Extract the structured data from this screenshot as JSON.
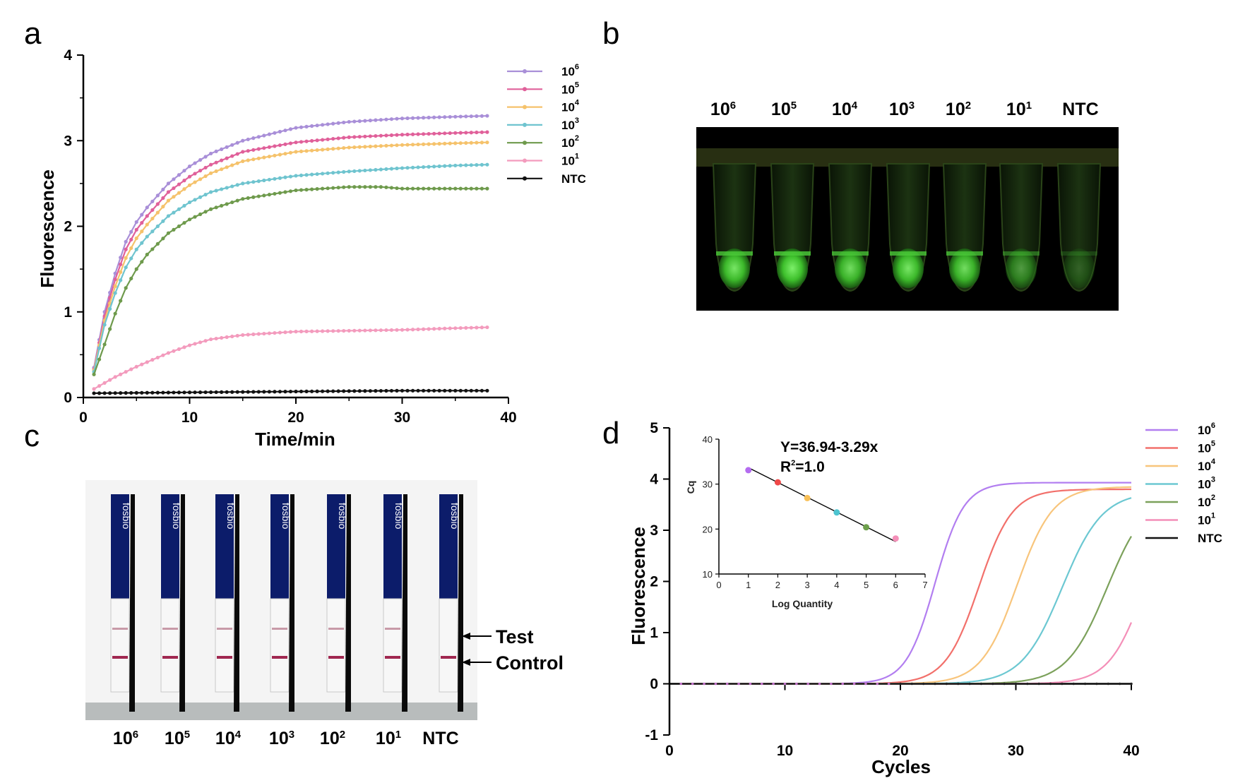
{
  "panels": {
    "a": "a",
    "b": "b",
    "c": "c",
    "d": "d"
  },
  "chart_data": [
    {
      "id": "a",
      "type": "line",
      "title": "",
      "xlabel": "Time/min",
      "ylabel": "Fluorescence",
      "xlim": [
        0,
        40
      ],
      "ylim": [
        0,
        4
      ],
      "xticks": [
        0,
        10,
        20,
        30,
        40
      ],
      "yticks": [
        0,
        1,
        2,
        3,
        4
      ],
      "legend_position": "top-right",
      "series": [
        {
          "name": "10",
          "sup": "6",
          "color": "#a98fd8",
          "x": [
            1,
            2,
            3,
            4,
            5,
            6,
            8,
            10,
            12,
            15,
            20,
            25,
            30,
            35,
            38
          ],
          "values": [
            0.35,
            1.0,
            1.45,
            1.82,
            2.05,
            2.22,
            2.5,
            2.7,
            2.85,
            3.0,
            3.15,
            3.22,
            3.26,
            3.28,
            3.29
          ]
        },
        {
          "name": "10",
          "sup": "5",
          "color": "#e0609a",
          "x": [
            1,
            2,
            3,
            4,
            5,
            6,
            8,
            10,
            12,
            15,
            20,
            25,
            30,
            35,
            38
          ],
          "values": [
            0.33,
            0.95,
            1.38,
            1.73,
            1.96,
            2.12,
            2.4,
            2.58,
            2.72,
            2.87,
            2.98,
            3.04,
            3.07,
            3.09,
            3.1
          ]
        },
        {
          "name": "10",
          "sup": "4",
          "color": "#f5c26b",
          "x": [
            1,
            2,
            3,
            4,
            5,
            6,
            8,
            10,
            12,
            15,
            20,
            25,
            30,
            35,
            38
          ],
          "values": [
            0.32,
            0.9,
            1.3,
            1.63,
            1.86,
            2.02,
            2.3,
            2.48,
            2.62,
            2.76,
            2.87,
            2.92,
            2.95,
            2.97,
            2.98
          ]
        },
        {
          "name": "10",
          "sup": "3",
          "color": "#6fc4cf",
          "x": [
            1,
            2,
            3,
            4,
            5,
            6,
            8,
            10,
            12,
            15,
            20,
            25,
            30,
            35,
            38
          ],
          "values": [
            0.3,
            0.85,
            1.22,
            1.52,
            1.73,
            1.88,
            2.12,
            2.28,
            2.4,
            2.5,
            2.59,
            2.64,
            2.68,
            2.71,
            2.72
          ]
        },
        {
          "name": "10",
          "sup": "2",
          "color": "#6e9a4c",
          "x": [
            1,
            2,
            3,
            4,
            5,
            6,
            8,
            10,
            12,
            15,
            20,
            25,
            28,
            30,
            35,
            38
          ],
          "values": [
            0.27,
            0.62,
            0.98,
            1.28,
            1.5,
            1.67,
            1.92,
            2.08,
            2.2,
            2.32,
            2.42,
            2.46,
            2.46,
            2.44,
            2.44,
            2.44
          ]
        },
        {
          "name": "10",
          "sup": "1",
          "color": "#f39bbd",
          "x": [
            1,
            3,
            5,
            8,
            10,
            12,
            15,
            20,
            25,
            30,
            35,
            38
          ],
          "values": [
            0.1,
            0.24,
            0.36,
            0.52,
            0.61,
            0.68,
            0.73,
            0.77,
            0.78,
            0.79,
            0.81,
            0.82
          ]
        },
        {
          "name": "NTC",
          "sup": "",
          "color": "#111111",
          "x": [
            1,
            10,
            20,
            30,
            38
          ],
          "values": [
            0.05,
            0.06,
            0.07,
            0.08,
            0.08
          ]
        }
      ]
    },
    {
      "id": "d",
      "type": "line",
      "title": "",
      "xlabel": "Cycles",
      "ylabel": "Fluorescence",
      "xlim": [
        0,
        40
      ],
      "ylim": [
        -1,
        5
      ],
      "xticks": [
        0,
        10,
        20,
        30,
        40
      ],
      "yticks": [
        -1,
        0,
        1,
        2,
        3,
        4,
        5
      ],
      "legend_position": "right",
      "series": [
        {
          "name": "10",
          "sup": "6",
          "color": "#b27ef0",
          "plateau": 3.93,
          "midpoint": 23.0,
          "slope": 1.25
        },
        {
          "name": "10",
          "sup": "5",
          "color": "#f2706b",
          "plateau": 3.8,
          "midpoint": 26.8,
          "slope": 1.45
        },
        {
          "name": "10",
          "sup": "4",
          "color": "#f8c57c",
          "plateau": 3.85,
          "midpoint": 30.1,
          "slope": 1.55
        },
        {
          "name": "10",
          "sup": "3",
          "color": "#6cc8d2",
          "plateau": 3.75,
          "midpoint": 34.0,
          "slope": 1.75
        },
        {
          "name": "10",
          "sup": "2",
          "color": "#7ca15b",
          "plateau": 3.75,
          "midpoint": 37.9,
          "slope": 1.75
        },
        {
          "name": "10",
          "sup": "1",
          "color": "#f48fb8",
          "plateau": 3.8,
          "midpoint": 41.2,
          "slope": 1.55
        },
        {
          "name": "NTC",
          "sup": "",
          "color": "#111111",
          "plateau": 0.0,
          "midpoint": 0,
          "slope": 1
        }
      ],
      "inset": {
        "type": "scatter",
        "xlabel": "Log Quantity",
        "ylabel": "Cq",
        "xlim": [
          0,
          7
        ],
        "ylim": [
          10,
          40
        ],
        "xticks": [
          0,
          1,
          2,
          3,
          4,
          5,
          6,
          7
        ],
        "yticks": [
          10,
          20,
          30,
          40
        ],
        "equation": "Y=36.94-3.29x",
        "r2_label": "R",
        "r2_sup": "2",
        "r2_value": "=1.0",
        "points": [
          {
            "x": 1,
            "y": 33.1,
            "color": "#b46cf0"
          },
          {
            "x": 2,
            "y": 30.4,
            "color": "#f04848"
          },
          {
            "x": 3,
            "y": 26.9,
            "color": "#f8c058"
          },
          {
            "x": 4,
            "y": 23.7,
            "color": "#4cc4d0"
          },
          {
            "x": 5,
            "y": 20.4,
            "color": "#6ea04c"
          },
          {
            "x": 6,
            "y": 17.9,
            "color": "#f48fb8"
          }
        ],
        "fit": {
          "intercept": 36.94,
          "slope": -3.29
        }
      }
    }
  ],
  "panel_b": {
    "lanes": [
      {
        "base": "10",
        "sup": "6",
        "intensity": 0.95
      },
      {
        "base": "10",
        "sup": "5",
        "intensity": 1.0
      },
      {
        "base": "10",
        "sup": "4",
        "intensity": 0.9
      },
      {
        "base": "10",
        "sup": "3",
        "intensity": 0.95
      },
      {
        "base": "10",
        "sup": "2",
        "intensity": 0.9
      },
      {
        "base": "10",
        "sup": "1",
        "intensity": 0.55
      },
      {
        "base": "NTC",
        "sup": "",
        "intensity": 0.25
      }
    ],
    "tube_color": "#4cd03a"
  },
  "panel_c": {
    "strip_brand": "fosbio",
    "lanes": [
      {
        "base": "10",
        "sup": "6",
        "test_line": true
      },
      {
        "base": "10",
        "sup": "5",
        "test_line": true
      },
      {
        "base": "10",
        "sup": "4",
        "test_line": true
      },
      {
        "base": "10",
        "sup": "3",
        "test_line": true
      },
      {
        "base": "10",
        "sup": "2",
        "test_line": true
      },
      {
        "base": "10",
        "sup": "1",
        "test_line": true
      },
      {
        "base": "NTC",
        "sup": "",
        "test_line": false
      }
    ],
    "test_label": "Test",
    "control_label": "Control"
  }
}
